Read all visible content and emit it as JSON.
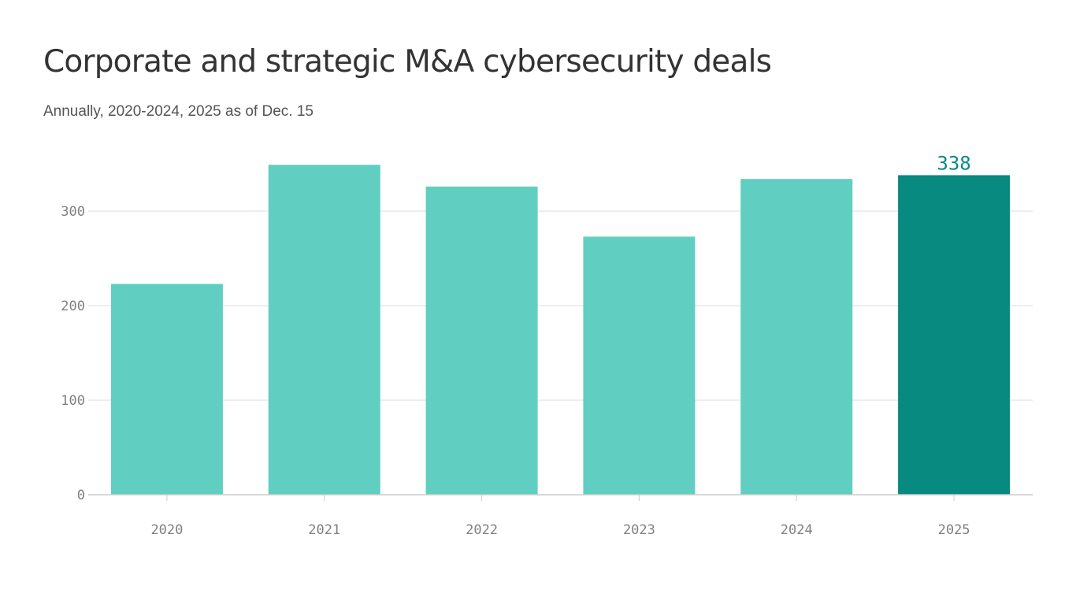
{
  "chart_data": {
    "type": "bar",
    "title": "Corporate and strategic M&A cybersecurity deals",
    "subtitle": "Annually, 2020-2024, 2025 as of Dec. 15",
    "categories": [
      "2020",
      "2021",
      "2022",
      "2023",
      "2024",
      "2025"
    ],
    "values": [
      223,
      349,
      326,
      273,
      334,
      338
    ],
    "data_labels": [
      {
        "category": "2025",
        "text": "338"
      }
    ],
    "highlight_category": "2025",
    "xlabel": "",
    "ylabel": "",
    "ylim": [
      0,
      360
    ],
    "yticks": [
      0,
      100,
      200,
      300
    ],
    "grid": "horizontal",
    "colors": {
      "bar": "#60cfc1",
      "highlight": "#088a81",
      "grid": "#dcdcdc",
      "axis": "#cccccc",
      "tick_label": "#808080",
      "highlight_label": "#088a81"
    }
  }
}
